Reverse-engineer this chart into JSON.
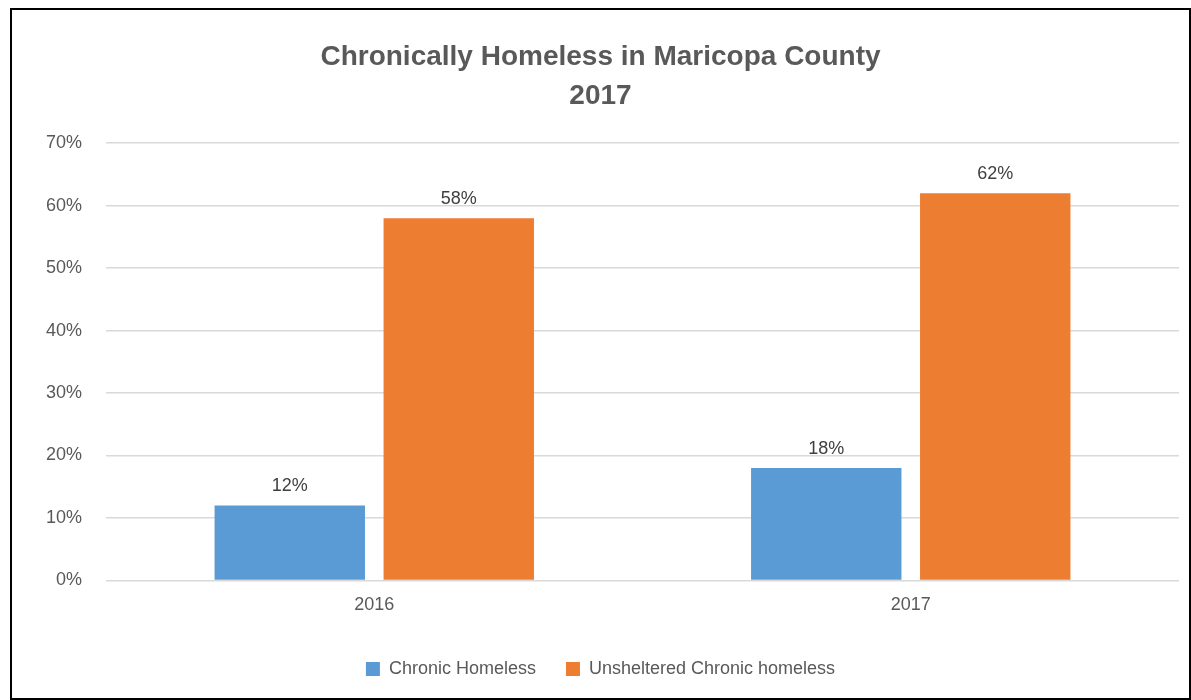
{
  "chart_data": {
    "type": "bar",
    "title": "Chronically Homeless in Maricopa County",
    "subtitle": "2017",
    "categories": [
      "2016",
      "2017"
    ],
    "series": [
      {
        "name": "Chronic Homeless",
        "color": "#5b9bd5",
        "values": [
          12,
          18
        ],
        "value_labels": [
          "12%",
          "18%"
        ]
      },
      {
        "name": "Unsheltered Chronic homeless",
        "color": "#ed7d31",
        "values": [
          58,
          62
        ],
        "value_labels": [
          "58%",
          "62%"
        ]
      }
    ],
    "ylim": [
      0,
      70
    ],
    "yticks": [
      {
        "value": 0,
        "label": "0%"
      },
      {
        "value": 10,
        "label": "10%"
      },
      {
        "value": 20,
        "label": "20%"
      },
      {
        "value": 30,
        "label": "30%"
      },
      {
        "value": 40,
        "label": "40%"
      },
      {
        "value": 50,
        "label": "50%"
      },
      {
        "value": 60,
        "label": "60%"
      },
      {
        "value": 70,
        "label": "70%"
      }
    ],
    "grid": "y",
    "legend": "bottom"
  }
}
